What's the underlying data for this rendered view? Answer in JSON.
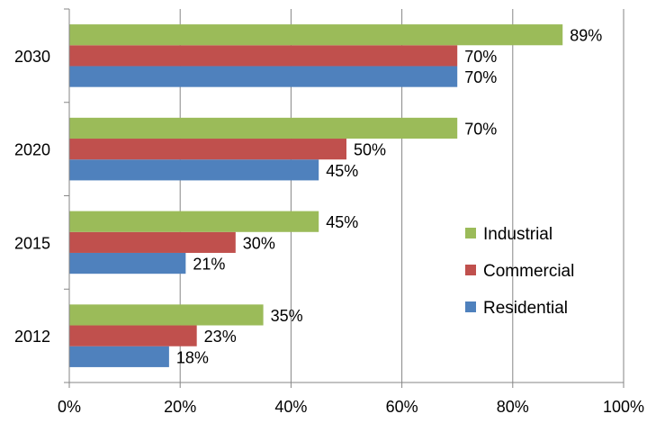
{
  "chart_data": {
    "type": "bar",
    "orientation": "horizontal",
    "title": "",
    "xlabel": "",
    "ylabel": "",
    "categories": [
      "2012",
      "2015",
      "2020",
      "2030"
    ],
    "series": [
      {
        "name": "Residential",
        "color": "#4F81BD",
        "values": [
          18,
          21,
          45,
          70
        ]
      },
      {
        "name": "Commercial",
        "color": "#C0504D",
        "values": [
          23,
          30,
          50,
          70
        ]
      },
      {
        "name": "Industrial",
        "color": "#9BBB59",
        "values": [
          35,
          45,
          70,
          89
        ]
      }
    ],
    "data_labels": [
      [
        "18%",
        "21%",
        "45%",
        "70%"
      ],
      [
        "23%",
        "30%",
        "50%",
        "70%"
      ],
      [
        "35%",
        "45%",
        "70%",
        "89%"
      ]
    ],
    "xlim": [
      0,
      100
    ],
    "x_ticks": [
      "0%",
      "20%",
      "40%",
      "60%",
      "80%",
      "100%"
    ],
    "grid": true,
    "legend_position": "right",
    "legend_order": [
      "Industrial",
      "Commercial",
      "Residential"
    ]
  }
}
